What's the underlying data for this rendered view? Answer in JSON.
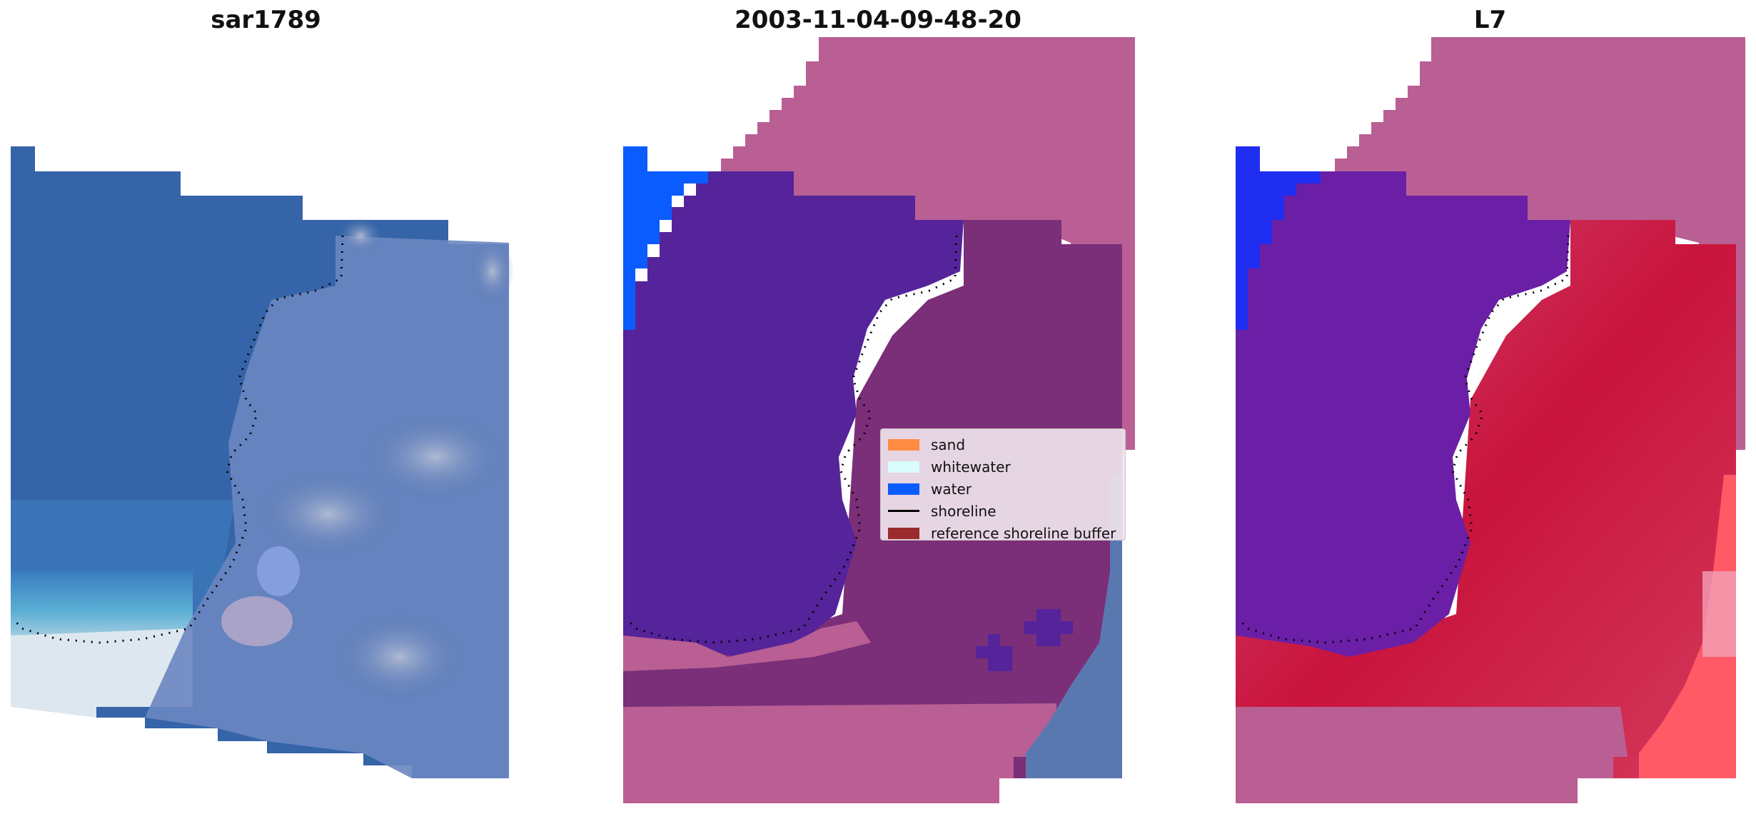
{
  "panels": [
    {
      "title": "sar1789"
    },
    {
      "title": "2003-11-04-09-48-20"
    },
    {
      "title": "L7"
    }
  ],
  "legend": {
    "items": [
      {
        "label": "sand",
        "kind": "patch",
        "color": "#ff8c42"
      },
      {
        "label": "whitewater",
        "kind": "patch",
        "color": "#d9fcfc"
      },
      {
        "label": "water",
        "kind": "patch",
        "color": "#0a5cff"
      },
      {
        "label": "shoreline",
        "kind": "line",
        "color": "#000000"
      },
      {
        "label": "reference shoreline buffer",
        "kind": "patch",
        "color": "#9b2a2e"
      }
    ]
  },
  "colors": {
    "rgb_water": "#3564a8",
    "buffer_overlay": "#b95f94",
    "classified_water_region": "#55239a",
    "classified_water_bright": "#0a5cff",
    "land_overlay": "#7a2f78",
    "index_high": "#c9143c",
    "index_low": "#6a1fa6"
  }
}
